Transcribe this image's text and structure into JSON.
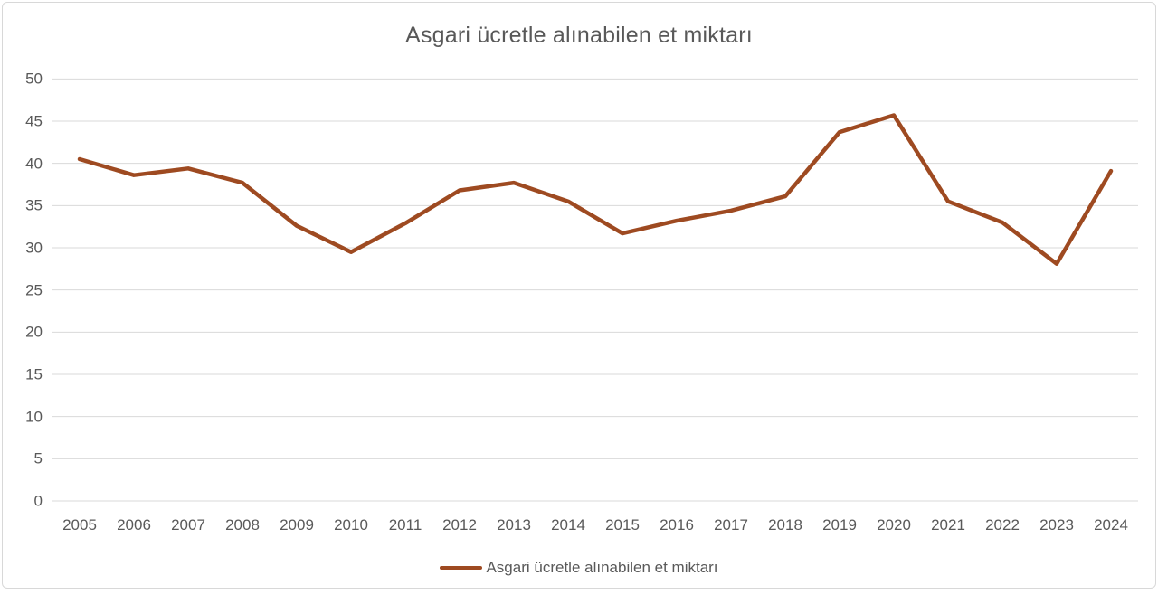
{
  "chart": {
    "title": "Asgari ücretle alınabilen et miktarı",
    "legend": {
      "label": "Asgari ücretle alınabilen et miktarı"
    }
  },
  "chart_data": {
    "type": "line",
    "title": "Asgari ücretle alınabilen et miktarı",
    "categories": [
      "2005",
      "2006",
      "2007",
      "2008",
      "2009",
      "2010",
      "2011",
      "2012",
      "2013",
      "2014",
      "2015",
      "2016",
      "2017",
      "2018",
      "2019",
      "2020",
      "2021",
      "2022",
      "2023",
      "2024"
    ],
    "series": [
      {
        "name": "Asgari ücretle alınabilen et miktarı",
        "color": "#9E4A21",
        "values": [
          40.5,
          38.6,
          39.4,
          37.7,
          32.6,
          29.5,
          32.9,
          36.8,
          37.7,
          35.5,
          31.7,
          33.2,
          34.4,
          36.1,
          43.7,
          45.7,
          35.5,
          33.0,
          28.1,
          39.1
        ]
      }
    ],
    "xlabel": "",
    "ylabel": "",
    "ylim": [
      0,
      50
    ],
    "ytick_step": 5,
    "grid": true,
    "legend_position": "bottom",
    "colors": {
      "grid": "#d9d9d9",
      "text": "#595959",
      "frame_border": "#d8d8d8",
      "background": "#ffffff"
    }
  }
}
